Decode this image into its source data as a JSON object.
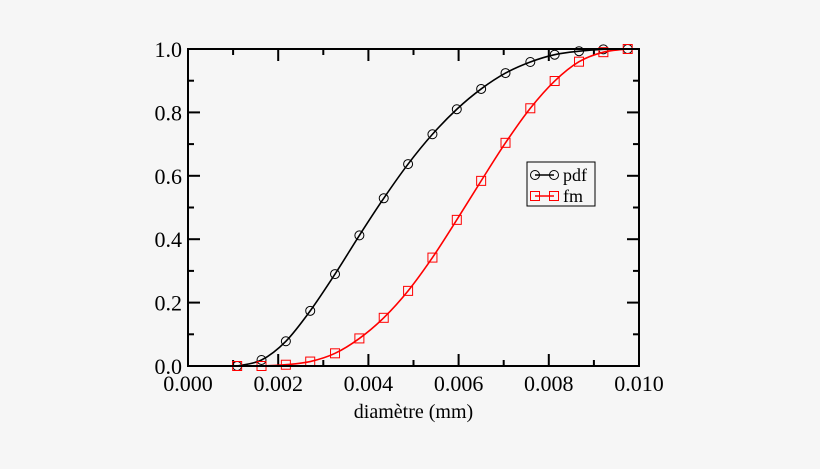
{
  "chart_data": {
    "type": "line",
    "title": "",
    "xlabel": "diamètre (mm)",
    "ylabel": "",
    "xlim": [
      0.0,
      0.01
    ],
    "ylim": [
      0.0,
      1.0
    ],
    "xticks": [
      "0.000",
      "0.002",
      "0.004",
      "0.006",
      "0.008",
      "0.010"
    ],
    "yticks": [
      "0.0",
      "0.2",
      "0.4",
      "0.6",
      "0.8",
      "1.0"
    ],
    "grid": false,
    "legend_position": "center-right",
    "x": [
      0.00109,
      0.00163,
      0.00217,
      0.00271,
      0.00326,
      0.0038,
      0.00434,
      0.00488,
      0.00542,
      0.00596,
      0.0065,
      0.00704,
      0.00759,
      0.00813,
      0.00867,
      0.00921,
      0.00975
    ],
    "series": [
      {
        "name": "pdf",
        "color": "#000000",
        "marker": "circle",
        "values": [
          0.0,
          0.019,
          0.078,
          0.174,
          0.29,
          0.412,
          0.529,
          0.637,
          0.731,
          0.81,
          0.874,
          0.924,
          0.959,
          0.982,
          0.993,
          0.999,
          1.0
        ]
      },
      {
        "name": "fm",
        "color": "#ff0000",
        "marker": "square",
        "values": [
          0.0,
          0.0,
          0.004,
          0.014,
          0.04,
          0.087,
          0.152,
          0.237,
          0.342,
          0.461,
          0.584,
          0.704,
          0.813,
          0.899,
          0.96,
          0.99,
          1.0
        ]
      }
    ]
  }
}
